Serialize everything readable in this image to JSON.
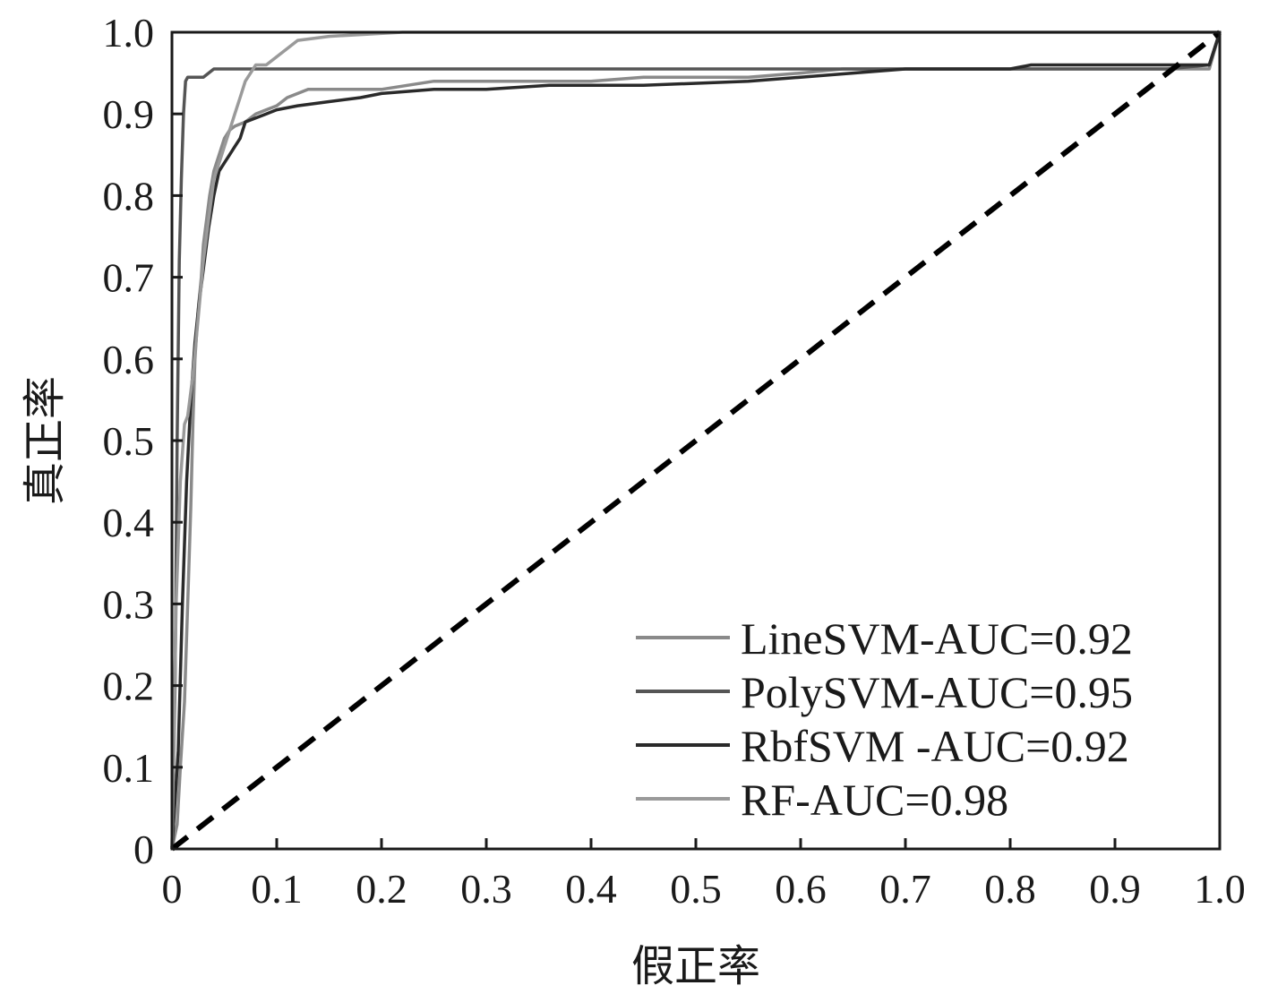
{
  "chart_data": {
    "type": "line",
    "xlabel": "假正率",
    "ylabel": "真正率",
    "xlim": [
      0,
      1
    ],
    "ylim": [
      0,
      1
    ],
    "x_ticks": [
      "0",
      "0.1",
      "0.2",
      "0.3",
      "0.4",
      "0.5",
      "0.6",
      "0.7",
      "0.8",
      "0.9",
      "1.0"
    ],
    "y_ticks": [
      "0",
      "0.1",
      "0.2",
      "0.3",
      "0.4",
      "0.5",
      "0.6",
      "0.7",
      "0.8",
      "0.9",
      "1.0"
    ],
    "grid": false,
    "legend_position": "bottom-right",
    "series": [
      {
        "name": "LineSVM-AUC=0.92",
        "color": "#8a8a8a",
        "style": "solid",
        "x": [
          0,
          0.005,
          0.008,
          0.012,
          0.015,
          0.018,
          0.02,
          0.022,
          0.025,
          0.028,
          0.03,
          0.033,
          0.036,
          0.04,
          0.045,
          0.05,
          0.055,
          0.06,
          0.07,
          0.08,
          0.09,
          0.1,
          0.11,
          0.13,
          0.15,
          0.2,
          0.25,
          0.3,
          0.35,
          0.4,
          0.45,
          0.5,
          0.55,
          0.6,
          0.64,
          0.7,
          0.8,
          0.9,
          0.95,
          0.99,
          1.0
        ],
        "y": [
          0,
          0.03,
          0.1,
          0.18,
          0.3,
          0.42,
          0.52,
          0.6,
          0.66,
          0.7,
          0.74,
          0.77,
          0.8,
          0.83,
          0.85,
          0.87,
          0.88,
          0.885,
          0.89,
          0.9,
          0.905,
          0.91,
          0.92,
          0.93,
          0.93,
          0.93,
          0.94,
          0.94,
          0.94,
          0.94,
          0.945,
          0.945,
          0.945,
          0.95,
          0.955,
          0.955,
          0.955,
          0.955,
          0.955,
          0.955,
          1.0
        ]
      },
      {
        "name": "PolySVM-AUC=0.95",
        "color": "#555555",
        "style": "solid",
        "x": [
          0,
          0.003,
          0.005,
          0.007,
          0.009,
          0.011,
          0.013,
          0.015,
          0.02,
          0.03,
          0.04,
          0.06,
          0.1,
          0.2,
          0.3,
          0.4,
          0.5,
          0.6,
          0.7,
          0.8,
          0.9,
          0.95,
          0.99,
          1.0
        ],
        "y": [
          0,
          0.2,
          0.5,
          0.72,
          0.82,
          0.9,
          0.94,
          0.945,
          0.945,
          0.945,
          0.955,
          0.955,
          0.955,
          0.955,
          0.955,
          0.955,
          0.955,
          0.955,
          0.955,
          0.955,
          0.955,
          0.955,
          0.96,
          1.0
        ]
      },
      {
        "name": "RbfSVM -AUC=0.92",
        "color": "#2a2a2a",
        "style": "solid",
        "x": [
          0,
          0.006,
          0.01,
          0.014,
          0.018,
          0.022,
          0.026,
          0.03,
          0.035,
          0.04,
          0.045,
          0.05,
          0.055,
          0.06,
          0.065,
          0.07,
          0.08,
          0.09,
          0.1,
          0.12,
          0.15,
          0.18,
          0.2,
          0.25,
          0.3,
          0.36,
          0.45,
          0.55,
          0.6,
          0.65,
          0.7,
          0.8,
          0.82,
          0.9,
          0.99,
          1.0
        ],
        "y": [
          0,
          0.12,
          0.3,
          0.45,
          0.55,
          0.62,
          0.67,
          0.71,
          0.76,
          0.8,
          0.83,
          0.84,
          0.85,
          0.86,
          0.87,
          0.89,
          0.895,
          0.9,
          0.905,
          0.91,
          0.915,
          0.92,
          0.925,
          0.93,
          0.93,
          0.935,
          0.935,
          0.94,
          0.945,
          0.95,
          0.955,
          0.955,
          0.96,
          0.96,
          0.96,
          1.0
        ]
      },
      {
        "name": "RF-AUC=0.98",
        "color": "#9a9a9a",
        "style": "solid",
        "x": [
          0,
          0.004,
          0.008,
          0.012,
          0.015,
          0.02,
          0.025,
          0.03,
          0.035,
          0.04,
          0.045,
          0.05,
          0.055,
          0.06,
          0.065,
          0.07,
          0.075,
          0.08,
          0.09,
          0.1,
          0.11,
          0.12,
          0.15,
          0.22,
          0.3,
          0.5,
          0.7,
          0.9,
          1.0
        ],
        "y": [
          0,
          0.3,
          0.45,
          0.52,
          0.53,
          0.58,
          0.65,
          0.72,
          0.77,
          0.82,
          0.84,
          0.86,
          0.88,
          0.9,
          0.92,
          0.94,
          0.95,
          0.96,
          0.96,
          0.97,
          0.98,
          0.99,
          0.995,
          1.0,
          1.0,
          1.0,
          1.0,
          1.0,
          1.0
        ]
      },
      {
        "name": "",
        "color": "#000000",
        "style": "dashed",
        "x": [
          0,
          1
        ],
        "y": [
          0,
          1
        ]
      }
    ]
  }
}
